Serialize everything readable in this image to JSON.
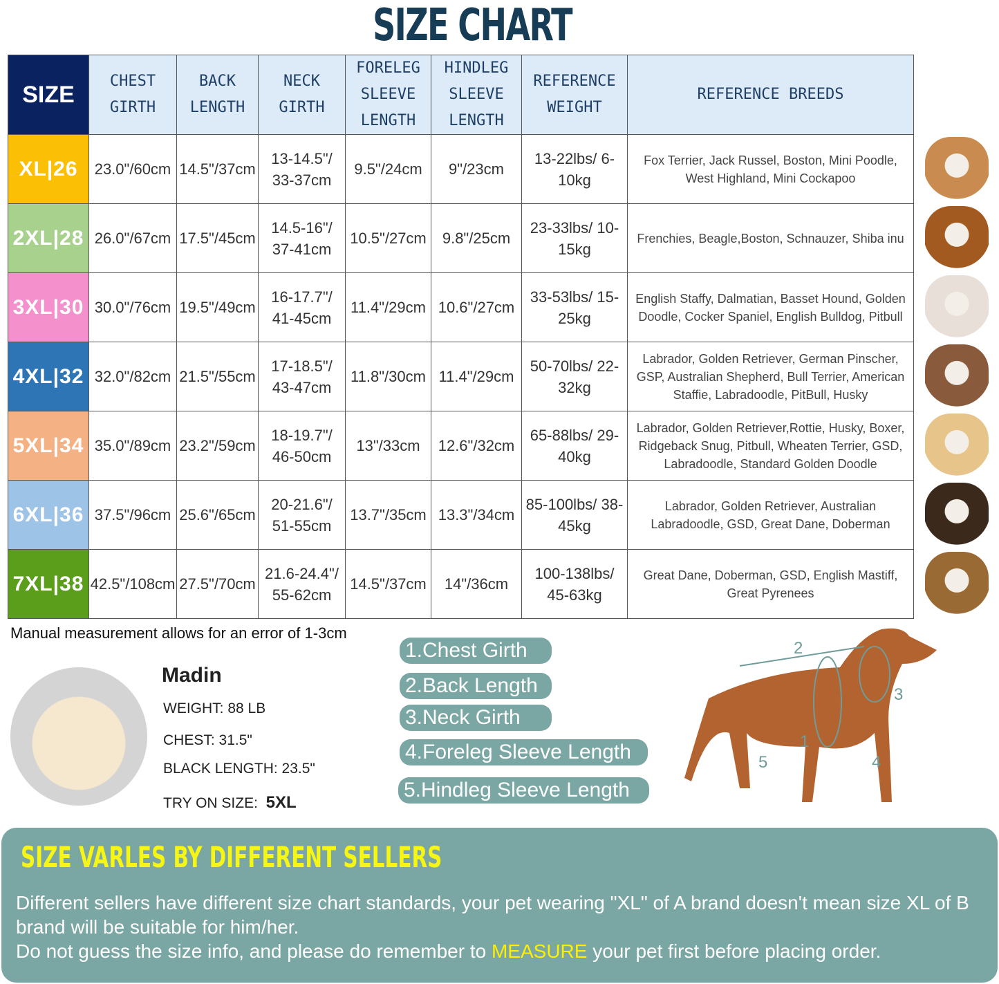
{
  "title": "SIZE CHART",
  "headers": [
    "SIZE",
    "CHEST GIRTH",
    "BACK LENGTH",
    "NECK GIRTH",
    "FORELEG SLEEVE LENGTH",
    "HINDLEG SLEEVE LENGTH",
    "REFERENCE WEIGHT",
    "REFERENCE BREEDS"
  ],
  "rows": [
    {
      "size": "XL|26",
      "color": "#fbbf06",
      "chest": "23.0\"/60cm",
      "back": "14.5\"/37cm",
      "neck": "13-14.5\"/ 33-37cm",
      "foreleg": "9.5\"/24cm",
      "hindleg": "9\"/23cm",
      "weight": "13-22lbs/ 6-10kg",
      "breeds": "Fox Terrier, Jack Russel, Boston, Mini Poodle, West Highland, Mini Cockapoo"
    },
    {
      "size": "2XL|28",
      "color": "#a9d18e",
      "chest": "26.0\"/67cm",
      "back": "17.5\"/45cm",
      "neck": "14.5-16\"/ 37-41cm",
      "foreleg": "10.5\"/27cm",
      "hindleg": "9.8\"/25cm",
      "weight": "23-33lbs/ 10-15kg",
      "breeds": "Frenchies, Beagle,Boston, Schnauzer, Shiba inu"
    },
    {
      "size": "3XL|30",
      "color": "#f490cb",
      "chest": "30.0\"/76cm",
      "back": "19.5\"/49cm",
      "neck": "16-17.7\"/ 41-45cm",
      "foreleg": "11.4\"/29cm",
      "hindleg": "10.6\"/27cm",
      "weight": "33-53lbs/ 15-25kg",
      "breeds": "English Staffy, Dalmatian, Basset Hound, Golden Doodle, Cocker Spaniel, English Bulldog, Pitbull"
    },
    {
      "size": "4XL|32",
      "color": "#2e75b6",
      "chest": "32.0\"/82cm",
      "back": "21.5\"/55cm",
      "neck": "17-18.5\"/ 43-47cm",
      "foreleg": "11.8\"/30cm",
      "hindleg": "11.4\"/29cm",
      "weight": "50-70lbs/ 22-32kg",
      "breeds": "Labrador, Golden Retriever, German Pinscher, GSP, Australian Shepherd, Bull Terrier, American Staffie, Labradoodle, PitBull, Husky"
    },
    {
      "size": "5XL|34",
      "color": "#f4b183",
      "chest": "35.0\"/89cm",
      "back": "23.2\"/59cm",
      "neck": "18-19.7\"/ 46-50cm",
      "foreleg": "13\"/33cm",
      "hindleg": "12.6\"/32cm",
      "weight": "65-88lbs/ 29-40kg",
      "breeds": "Labrador, Golden Retriever,Rottie, Husky, Boxer, Ridgeback Snug, Pitbull, Wheaten Terrier, GSD, Labradoodle,  Standard Golden Doodle"
    },
    {
      "size": "6XL|36",
      "color": "#9dc3e6",
      "chest": "37.5\"/96cm",
      "back": "25.6\"/65cm",
      "neck": "20-21.6\"/ 51-55cm",
      "foreleg": "13.7\"/35cm",
      "hindleg": "13.3\"/34cm",
      "weight": "85-100lbs/ 38-45kg",
      "breeds": "Labrador, Golden Retriever, Australian Labradoodle, GSD, Great Dane, Doberman"
    },
    {
      "size": "7XL|38",
      "color": "#5a9e1c",
      "chest": "42.5\"/108cm",
      "back": "27.5\"/70cm",
      "neck": "21.6-24.4\"/ 55-62cm",
      "foreleg": "14.5\"/37cm",
      "hindleg": "14\"/36cm",
      "weight": "100-138lbs/ 45-63kg",
      "breeds": "Great Dane, Doberman, GSD, English Mastiff, Great Pyrenees"
    }
  ],
  "note": "Manual measurement allows for an error of 1-3cm",
  "example": {
    "name": "Madin",
    "weight": "WEIGHT: 88 LB",
    "chest": "CHEST: 31.5\"",
    "length": "BLACK LENGTH: 23.5\"",
    "try_label": "TRY ON SIZE:",
    "try_size": "5XL"
  },
  "measurements": [
    "1.Chest Girth",
    "2.Back Length",
    "3.Neck Girth",
    "4.Foreleg Sleeve Length",
    "5.Hindleg Sleeve Length"
  ],
  "diagram_labels": [
    "1",
    "2",
    "3",
    "4",
    "5"
  ],
  "banner": {
    "title": "SIZE VARLES BY DIFFERENT SELLERS",
    "line1": "Different sellers have different size chart standards, your pet wearing \"XL\" of A brand doesn't mean size  XL of B brand will be suitable for him/her.",
    "line2_a": "Do not guess the size info, and please do remember to ",
    "line2_hl": "MEASURE",
    "line2_b": " your pet first before placing order."
  }
}
